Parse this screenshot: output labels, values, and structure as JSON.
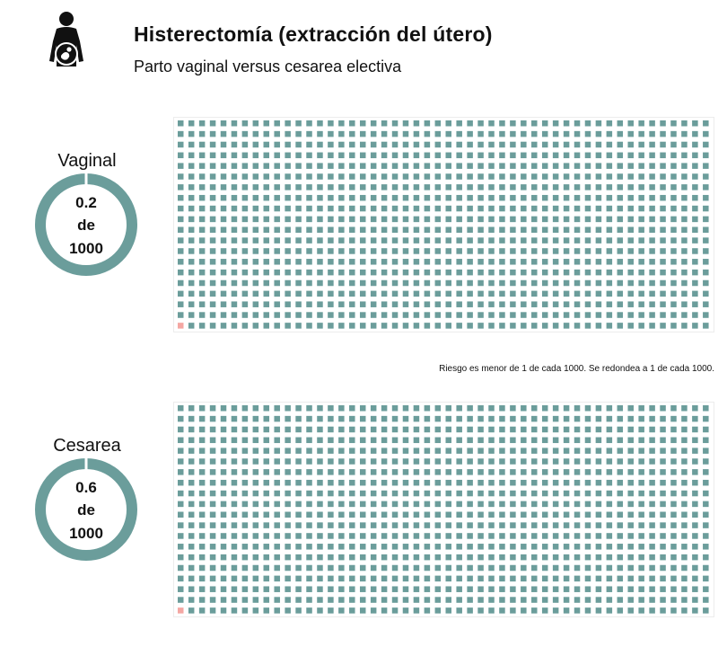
{
  "header": {
    "title": "Histerectomía (extracción del útero)",
    "subtitle": "Parto vaginal versus cesarea electiva",
    "icon": "pregnant-woman-icon"
  },
  "colors": {
    "base": "#6b9d9b",
    "highlight": "#f4a7a3",
    "text": "#111111"
  },
  "chart_data": [
    {
      "type": "waffle",
      "label": "Vaginal",
      "donut_lines": [
        "0.2",
        "de",
        "1000"
      ],
      "rate": 0.2,
      "per": 1000,
      "highlighted_cells": 1,
      "total_cells": 1000,
      "rows": 20,
      "cols": 50,
      "note": "Riesgo es menor de 1 de cada 1000. Se redondea a 1 de cada 1000."
    },
    {
      "type": "waffle",
      "label": "Cesarea",
      "donut_lines": [
        "0.6",
        "de",
        "1000"
      ],
      "rate": 0.6,
      "per": 1000,
      "highlighted_cells": 1,
      "total_cells": 1000,
      "rows": 20,
      "cols": 50
    }
  ]
}
